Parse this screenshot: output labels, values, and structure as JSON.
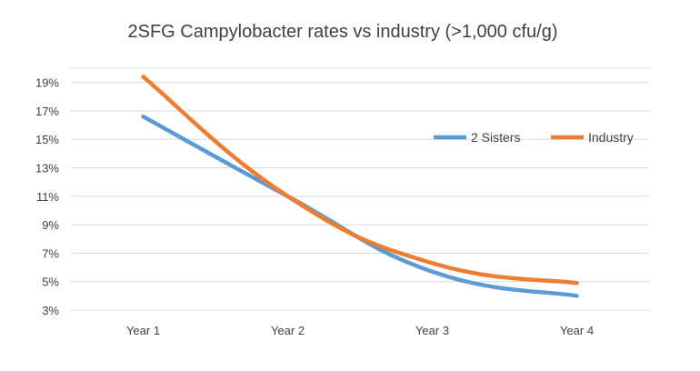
{
  "chart_data": {
    "type": "line",
    "title": "2SFG Campylobacter rates vs industry (>1,000 cfu/g)",
    "xlabel": "",
    "ylabel": "",
    "categories": [
      "Year 1",
      "Year 2",
      "Year 3",
      "Year 4"
    ],
    "y_ticks": [
      3,
      5,
      7,
      9,
      11,
      13,
      15,
      17,
      19
    ],
    "y_tick_labels": [
      "3%",
      "5%",
      "7%",
      "9%",
      "11%",
      "13%",
      "15%",
      "17%",
      "19%"
    ],
    "ylim": [
      3,
      20
    ],
    "grid": true,
    "legend_position": "right",
    "series": [
      {
        "name": "2 Sisters",
        "color": "#5B9BD5",
        "values": [
          16.6,
          11.0,
          5.7,
          4.0
        ]
      },
      {
        "name": "Industry",
        "color": "#ED7D31",
        "values": [
          19.4,
          11.0,
          6.3,
          4.9
        ]
      }
    ]
  }
}
